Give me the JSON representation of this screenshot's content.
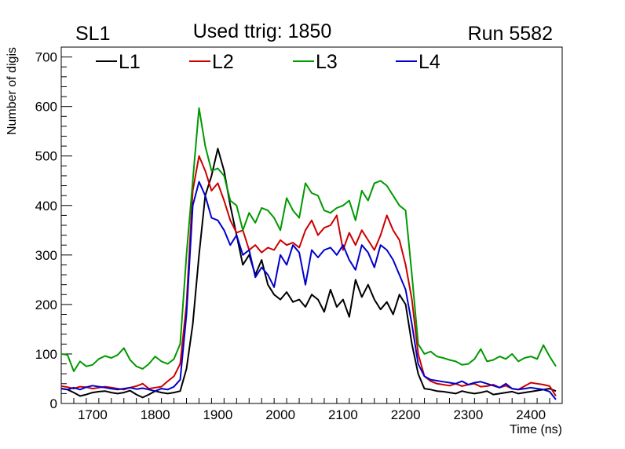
{
  "chart_data": {
    "type": "line",
    "title": "Used ttrig: 1850",
    "left_label": "SL1",
    "right_label": "Run 5582",
    "xlabel": "Time (ns)",
    "ylabel": "Number of digis",
    "xlim": [
      1650,
      2450
    ],
    "ylim": [
      0,
      720
    ],
    "xticks": [
      1700,
      1800,
      1900,
      2000,
      2100,
      2200,
      2300,
      2400
    ],
    "yticks": [
      0,
      100,
      200,
      300,
      400,
      500,
      600,
      700
    ],
    "legend_placement": "top",
    "x": [
      1650,
      1660,
      1670,
      1680,
      1690,
      1700,
      1710,
      1720,
      1730,
      1740,
      1750,
      1760,
      1770,
      1780,
      1790,
      1800,
      1810,
      1820,
      1830,
      1840,
      1850,
      1860,
      1870,
      1880,
      1890,
      1900,
      1910,
      1920,
      1930,
      1940,
      1950,
      1960,
      1970,
      1980,
      1990,
      2000,
      2010,
      2020,
      2030,
      2040,
      2050,
      2060,
      2070,
      2080,
      2090,
      2100,
      2110,
      2120,
      2130,
      2140,
      2150,
      2160,
      2170,
      2180,
      2190,
      2200,
      2210,
      2220,
      2230,
      2240,
      2250,
      2260,
      2270,
      2280,
      2290,
      2300,
      2310,
      2320,
      2330,
      2340,
      2350,
      2360,
      2370,
      2380,
      2390,
      2400,
      2410,
      2420,
      2430,
      2440
    ],
    "series": [
      {
        "name": "L1",
        "color": "#000000",
        "values": [
          30,
          28,
          22,
          15,
          18,
          22,
          24,
          25,
          22,
          20,
          22,
          26,
          18,
          12,
          18,
          25,
          22,
          20,
          22,
          25,
          70,
          160,
          300,
          420,
          460,
          515,
          470,
          400,
          340,
          280,
          300,
          260,
          290,
          240,
          220,
          210,
          225,
          205,
          210,
          195,
          220,
          210,
          185,
          230,
          195,
          210,
          175,
          250,
          215,
          240,
          210,
          190,
          205,
          180,
          220,
          200,
          120,
          60,
          30,
          28,
          25,
          24,
          22,
          20,
          25,
          22,
          20,
          22,
          25,
          18,
          20,
          22,
          24,
          20,
          22,
          24,
          26,
          28,
          30,
          25
        ]
      },
      {
        "name": "L2",
        "color": "#cc0000",
        "values": [
          35,
          33,
          30,
          34,
          33,
          30,
          32,
          34,
          32,
          30,
          28,
          32,
          35,
          40,
          30,
          32,
          34,
          45,
          55,
          80,
          200,
          430,
          500,
          470,
          430,
          445,
          410,
          370,
          345,
          350,
          310,
          320,
          305,
          315,
          310,
          330,
          320,
          325,
          315,
          350,
          370,
          340,
          355,
          360,
          380,
          310,
          345,
          320,
          350,
          330,
          310,
          340,
          380,
          350,
          330,
          280,
          210,
          100,
          55,
          45,
          40,
          38,
          36,
          40,
          35,
          38,
          40,
          34,
          35,
          38,
          32,
          36,
          30,
          28,
          35,
          42,
          40,
          38,
          35,
          15
        ]
      },
      {
        "name": "L3",
        "color": "#009900",
        "values": [
          100,
          98,
          65,
          85,
          75,
          78,
          90,
          96,
          92,
          98,
          112,
          88,
          75,
          70,
          80,
          95,
          85,
          80,
          90,
          120,
          300,
          450,
          597,
          520,
          470,
          475,
          460,
          410,
          400,
          350,
          385,
          365,
          395,
          390,
          375,
          350,
          415,
          390,
          375,
          445,
          425,
          420,
          390,
          385,
          395,
          400,
          410,
          370,
          430,
          410,
          445,
          450,
          440,
          420,
          400,
          390,
          260,
          120,
          100,
          105,
          95,
          92,
          88,
          85,
          78,
          80,
          90,
          110,
          85,
          88,
          95,
          90,
          100,
          85,
          92,
          95,
          90,
          118,
          95,
          75
        ]
      },
      {
        "name": "L4",
        "color": "#0000cc",
        "values": [
          30,
          28,
          32,
          28,
          33,
          36,
          34,
          32,
          30,
          28,
          30,
          32,
          29,
          31,
          28,
          25,
          30,
          28,
          34,
          48,
          180,
          400,
          448,
          420,
          375,
          370,
          350,
          320,
          340,
          300,
          310,
          255,
          275,
          260,
          235,
          300,
          280,
          320,
          305,
          240,
          310,
          295,
          310,
          315,
          300,
          320,
          290,
          270,
          320,
          305,
          275,
          320,
          310,
          290,
          260,
          230,
          160,
          80,
          55,
          48,
          46,
          44,
          42,
          40,
          45,
          38,
          42,
          44,
          40,
          36,
          32,
          40,
          30,
          28,
          30,
          32,
          30,
          28,
          24,
          8
        ]
      }
    ]
  }
}
